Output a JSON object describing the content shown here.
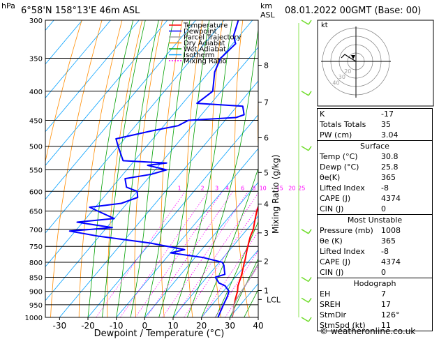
{
  "header": {
    "location": "6°58'N  158°13'E  46m  ASL",
    "datetime": "08.01.2022  00GMT  (Base: 00)",
    "hpa_unit": "hPa",
    "km_unit": "km",
    "asl_unit": "ASL"
  },
  "chart_data": {
    "type": "line",
    "xlabel": "Dewpoint / Temperature (°C)",
    "ylabel_left": "hPa",
    "ylabel_right": "Mixing Ratio (g/kg)",
    "xlim": [
      -35,
      40
    ],
    "ylim": [
      1000,
      300
    ],
    "y_scale": "log",
    "x_ticks": [
      -30,
      -20,
      -10,
      0,
      10,
      20,
      30,
      40
    ],
    "pressure_levels": [
      300,
      350,
      400,
      450,
      500,
      550,
      600,
      650,
      700,
      750,
      800,
      850,
      900,
      950,
      1000
    ],
    "km_ticks": [
      {
        "label": "8",
        "p": 360
      },
      {
        "label": "7",
        "p": 418
      },
      {
        "label": "6",
        "p": 483
      },
      {
        "label": "5",
        "p": 556
      },
      {
        "label": "4",
        "p": 632
      },
      {
        "label": "3",
        "p": 710
      },
      {
        "label": "2",
        "p": 796
      },
      {
        "label": "1",
        "p": 897
      },
      {
        "label": "LCL",
        "p": 930
      }
    ],
    "mixing_ratio_labels": [
      "1",
      "2",
      "3",
      "4",
      "6",
      "8",
      "10",
      "15",
      "20",
      "25"
    ],
    "mixing_ratio_values": [
      1,
      2,
      3,
      4,
      6,
      8,
      10,
      15,
      20,
      25
    ],
    "legend": {
      "position": "top",
      "entries": [
        {
          "name": "Temperature",
          "color": "#ff0000",
          "style": "solid"
        },
        {
          "name": "Dewpoint",
          "color": "#0000ff",
          "style": "solid"
        },
        {
          "name": "Parcel Trajectory",
          "color": "#a0a0a0",
          "style": "solid"
        },
        {
          "name": "Dry Adiabat",
          "color": "#ff8c00",
          "style": "solid"
        },
        {
          "name": "Wet Adiabat",
          "color": "#00a000",
          "style": "solid"
        },
        {
          "name": "Isotherm",
          "color": "#00a0ff",
          "style": "solid"
        },
        {
          "name": "Mixing Ratio",
          "color": "#ff00ff",
          "style": "dotted"
        }
      ]
    },
    "series": [
      {
        "name": "Temperature",
        "color": "#ff0000",
        "points": [
          [
            300,
            -31.6
          ],
          [
            320,
            -28.4
          ],
          [
            350,
            -24.0
          ],
          [
            370,
            -20.6
          ],
          [
            400,
            -16.4
          ],
          [
            420,
            -14.2
          ],
          [
            430,
            -12.2
          ],
          [
            450,
            -9.6
          ],
          [
            480,
            -6.4
          ],
          [
            500,
            -4.2
          ],
          [
            530,
            -1.8
          ],
          [
            550,
            -0.4
          ],
          [
            570,
            1.0
          ],
          [
            600,
            4.0
          ],
          [
            620,
            6.0
          ],
          [
            650,
            8.0
          ],
          [
            680,
            10.5
          ],
          [
            700,
            12.2
          ],
          [
            720,
            13.2
          ],
          [
            740,
            14.6
          ],
          [
            760,
            16.0
          ],
          [
            790,
            18.2
          ],
          [
            800,
            18.8
          ],
          [
            830,
            20.8
          ],
          [
            850,
            22.0
          ],
          [
            880,
            23.5
          ],
          [
            900,
            25.0
          ],
          [
            930,
            26.6
          ],
          [
            950,
            27.8
          ],
          [
            975,
            29.4
          ],
          [
            1000,
            30.8
          ]
        ]
      },
      {
        "name": "Dewpoint",
        "color": "#0000ff",
        "points": [
          [
            300,
            -55
          ],
          [
            320,
            -52
          ],
          [
            330,
            -49
          ],
          [
            350,
            -50
          ],
          [
            370,
            -48
          ],
          [
            400,
            -43
          ],
          [
            420,
            -45
          ],
          [
            425,
            -28
          ],
          [
            440,
            -25
          ],
          [
            445,
            -27
          ],
          [
            450,
            -43
          ],
          [
            460,
            -45
          ],
          [
            470,
            -53
          ],
          [
            485,
            -63
          ],
          [
            500,
            -60
          ],
          [
            530,
            -54
          ],
          [
            535,
            -38
          ],
          [
            540,
            -44
          ],
          [
            550,
            -36
          ],
          [
            560,
            -40
          ],
          [
            570,
            -48
          ],
          [
            590,
            -45
          ],
          [
            600,
            -40
          ],
          [
            615,
            -38
          ],
          [
            630,
            -42
          ],
          [
            640,
            -52
          ],
          [
            650,
            -48
          ],
          [
            670,
            -40
          ],
          [
            680,
            -52
          ],
          [
            695,
            -38
          ],
          [
            705,
            -52
          ],
          [
            720,
            -40
          ],
          [
            740,
            -20
          ],
          [
            760,
            -6
          ],
          [
            770,
            -10
          ],
          [
            785,
            3
          ],
          [
            800,
            11
          ],
          [
            810,
            12.5
          ],
          [
            830,
            14.5
          ],
          [
            840,
            15.5
          ],
          [
            850,
            13
          ],
          [
            870,
            16
          ],
          [
            880,
            19
          ],
          [
            900,
            22
          ],
          [
            920,
            23
          ],
          [
            950,
            24
          ],
          [
            1000,
            25.8
          ]
        ]
      },
      {
        "name": "Parcel Trajectory",
        "color": "#a0a0a0",
        "points": [
          [
            300,
            -17.5
          ],
          [
            350,
            -9.0
          ],
          [
            400,
            -2.5
          ],
          [
            450,
            3.0
          ],
          [
            500,
            7.6
          ],
          [
            550,
            11.6
          ],
          [
            600,
            15.0
          ],
          [
            650,
            17.8
          ],
          [
            700,
            20.2
          ],
          [
            750,
            22.3
          ],
          [
            800,
            24.0
          ],
          [
            850,
            25.4
          ],
          [
            900,
            26.4
          ],
          [
            930,
            27.0
          ],
          [
            950,
            27.8
          ],
          [
            1000,
            30.8
          ]
        ]
      }
    ],
    "wind_barbs_p": [
      300,
      400,
      500,
      700,
      850,
      925,
      1000
    ]
  },
  "hodograph": {
    "label": "kt",
    "ring_labels": [
      "20",
      "30",
      "40"
    ],
    "colors": {
      "rings": "#808080",
      "axes": "#000000",
      "trace": "#000000"
    }
  },
  "indices": {
    "rows": [
      {
        "label": "K",
        "value": "-17"
      },
      {
        "label": "Totals Totals",
        "value": "35"
      },
      {
        "label": "PW (cm)",
        "value": "3.04"
      }
    ]
  },
  "surface": {
    "title": "Surface",
    "rows": [
      {
        "label": "Temp (°C)",
        "value": "30.8"
      },
      {
        "label": "Dewp (°C)",
        "value": "25.8"
      },
      {
        "label": "θe(K)",
        "value": "365"
      },
      {
        "label": "Lifted Index",
        "value": "-8"
      },
      {
        "label": "CAPE (J)",
        "value": "4374"
      },
      {
        "label": "CIN (J)",
        "value": "0"
      }
    ]
  },
  "most_unstable": {
    "title": "Most Unstable",
    "rows": [
      {
        "label": "Pressure (mb)",
        "value": "1008"
      },
      {
        "label": "θe (K)",
        "value": "365"
      },
      {
        "label": "Lifted Index",
        "value": "-8"
      },
      {
        "label": "CAPE (J)",
        "value": "4374"
      },
      {
        "label": "CIN (J)",
        "value": "0"
      }
    ]
  },
  "hodograph_table": {
    "title": "Hodograph",
    "rows": [
      {
        "label": "EH",
        "value": "7"
      },
      {
        "label": "SREH",
        "value": "17"
      },
      {
        "label": "StmDir",
        "value": "126°"
      },
      {
        "label": "StmSpd (kt)",
        "value": "11"
      }
    ]
  },
  "copyright": "© weatheronline.co.uk"
}
